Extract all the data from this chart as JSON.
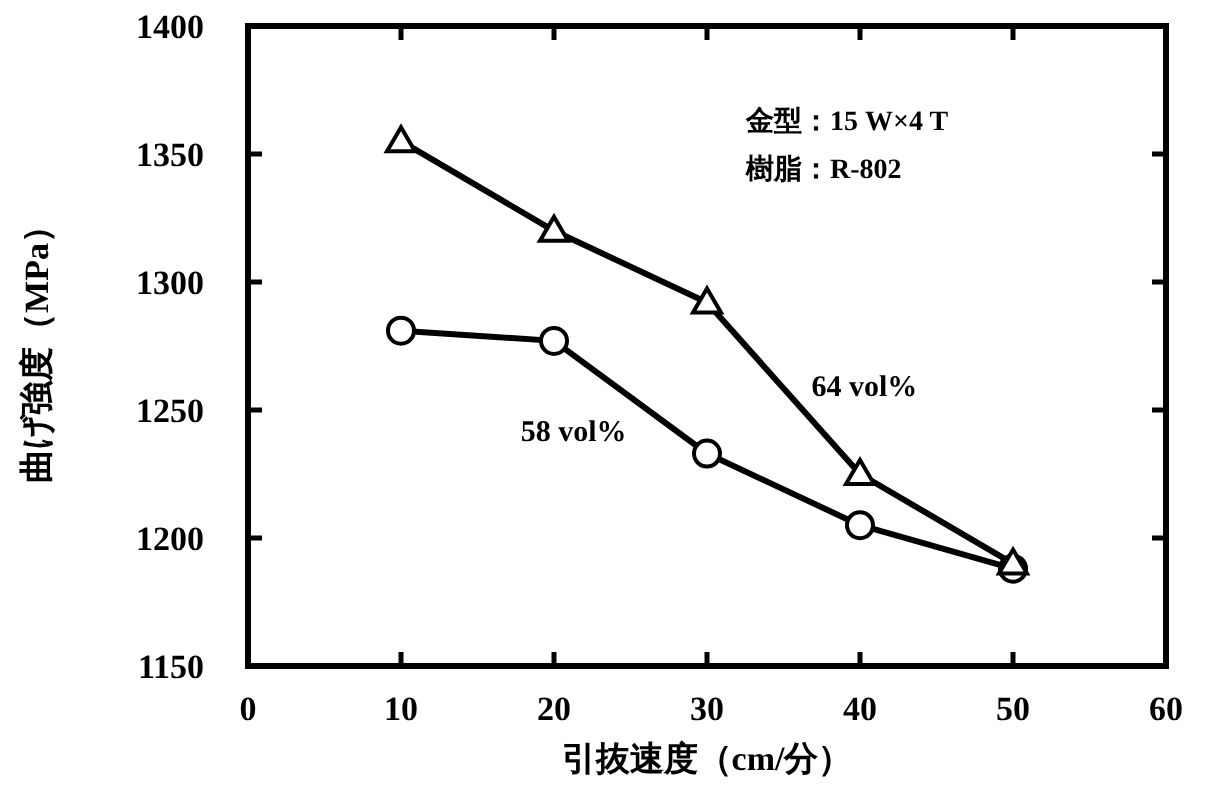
{
  "chart_data": {
    "type": "line",
    "xlabel": "引抜速度（cm/分）",
    "ylabel": "曲げ強度（MPa）",
    "x": [
      10,
      20,
      30,
      40,
      50
    ],
    "series": [
      {
        "name": "64 vol%",
        "color": "#000000",
        "marker": "triangle",
        "values": [
          1355,
          1320,
          1292,
          1225,
          1190
        ]
      },
      {
        "name": "58 vol%",
        "color": "#000000",
        "marker": "circle",
        "values": [
          1281,
          1277,
          1233,
          1205,
          1188
        ]
      }
    ],
    "xlim": [
      0,
      60
    ],
    "xticks": [
      0,
      10,
      20,
      30,
      40,
      50,
      60
    ],
    "ylim": [
      1150,
      1400
    ],
    "yticks": [
      1150,
      1200,
      1250,
      1300,
      1350,
      1400
    ],
    "annotations": [
      "金型：15 W×4 T",
      "樹脂：R-802"
    ],
    "grid": false,
    "line_style": "solid"
  }
}
